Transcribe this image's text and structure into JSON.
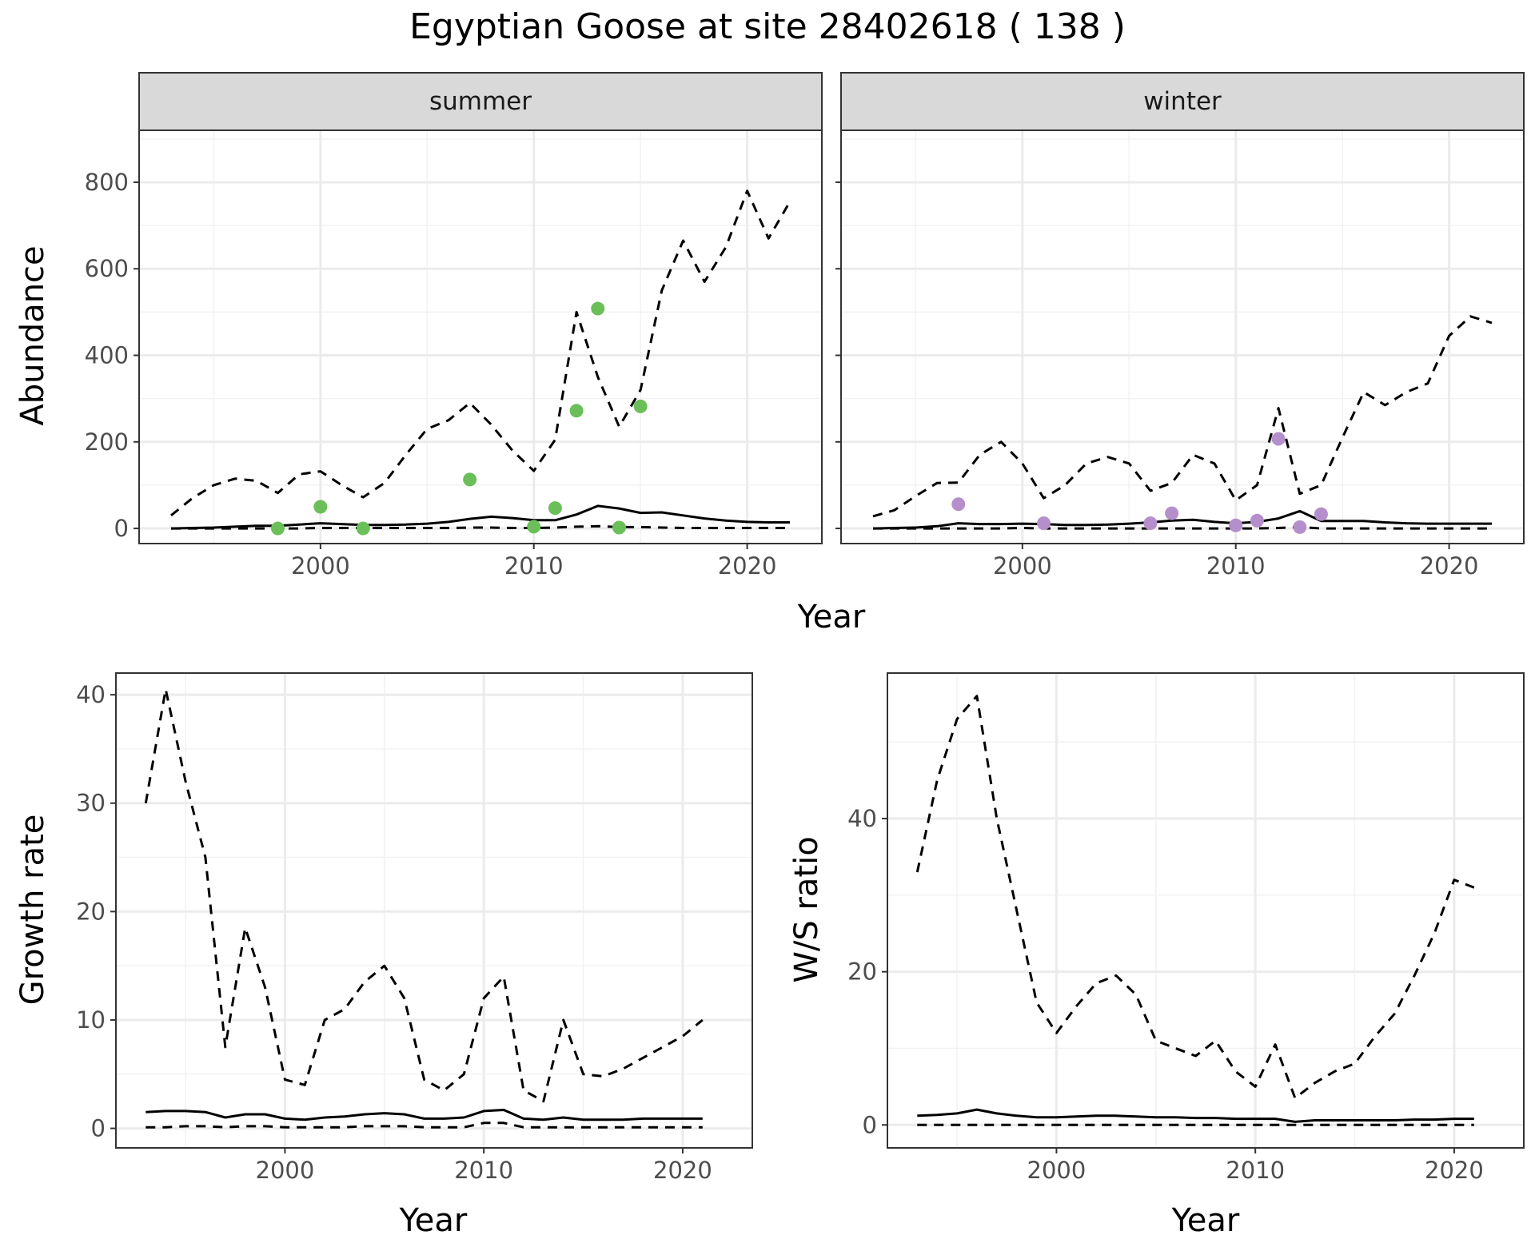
{
  "title": "Egyptian Goose at site 28402618 ( 138 )",
  "chart_data": [
    {
      "type": "line",
      "panel": "abundance",
      "facets": [
        "summer",
        "winter"
      ],
      "xlabel": "Year",
      "ylabel": "Abundance",
      "xlim": [
        1991.5,
        2023.5
      ],
      "ylim": [
        -35,
        920
      ],
      "xticks": [
        2000,
        2010,
        2020
      ],
      "yticks": [
        0,
        200,
        400,
        600,
        800
      ],
      "grid": true,
      "legend": "none",
      "x": [
        1993,
        1994,
        1995,
        1996,
        1997,
        1998,
        1999,
        2000,
        2001,
        2002,
        2003,
        2004,
        2005,
        2006,
        2007,
        2008,
        2009,
        2010,
        2011,
        2012,
        2013,
        2014,
        2015,
        2016,
        2017,
        2018,
        2019,
        2020,
        2021,
        2022
      ],
      "summer": {
        "point_color": "#6abf59",
        "points": [
          [
            1998,
            0
          ],
          [
            2000,
            50
          ],
          [
            2002,
            0
          ],
          [
            2007,
            113
          ],
          [
            2010,
            4
          ],
          [
            2011,
            47
          ],
          [
            2012,
            272
          ],
          [
            2013,
            508
          ],
          [
            2014,
            2
          ],
          [
            2015,
            282
          ]
        ],
        "median": [
          0,
          1,
          2,
          4,
          6,
          6,
          9,
          12,
          10,
          8,
          8,
          9,
          11,
          15,
          22,
          27,
          24,
          19,
          19,
          32,
          52,
          46,
          36,
          37,
          30,
          23,
          18,
          15,
          14,
          14
        ],
        "upper": [
          30,
          70,
          100,
          115,
          110,
          82,
          125,
          132,
          100,
          72,
          105,
          170,
          230,
          250,
          290,
          240,
          180,
          133,
          205,
          500,
          350,
          235,
          320,
          550,
          665,
          570,
          650,
          780,
          670,
          755
        ],
        "lower": [
          0,
          0,
          0,
          0,
          0,
          0,
          0,
          1,
          1,
          1,
          1,
          1,
          1,
          1,
          2,
          2,
          1,
          1,
          2,
          4,
          5,
          3,
          3,
          2,
          1,
          1,
          1,
          1,
          1,
          1
        ]
      },
      "winter": {
        "point_color": "#b58fcb",
        "points": [
          [
            1997,
            56
          ],
          [
            2001,
            12
          ],
          [
            2006,
            12
          ],
          [
            2007,
            35
          ],
          [
            2010,
            7
          ],
          [
            2011,
            18
          ],
          [
            2012,
            207
          ],
          [
            2013,
            3
          ],
          [
            2014,
            33
          ]
        ],
        "median": [
          0,
          1,
          2,
          5,
          12,
          10,
          10,
          11,
          10,
          8,
          8,
          9,
          11,
          14,
          18,
          20,
          15,
          12,
          15,
          23,
          40,
          17,
          17,
          17,
          14,
          12,
          11,
          11,
          11,
          11
        ],
        "upper": [
          28,
          42,
          75,
          105,
          106,
          170,
          200,
          150,
          70,
          100,
          150,
          165,
          150,
          87,
          105,
          170,
          150,
          65,
          100,
          278,
          80,
          100,
          210,
          315,
          285,
          315,
          335,
          445,
          490,
          475
        ],
        "lower": [
          0,
          0,
          0,
          0,
          0,
          0,
          0,
          1,
          0,
          0,
          0,
          0,
          0,
          0,
          0,
          0,
          0,
          0,
          0,
          1,
          3,
          0,
          0,
          0,
          0,
          0,
          0,
          0,
          0,
          0
        ]
      }
    },
    {
      "type": "line",
      "panel": "growth",
      "xlabel": "Year",
      "ylabel": "Growth rate",
      "xlim": [
        1991.5,
        2023.5
      ],
      "ylim": [
        -1.8,
        42
      ],
      "xticks": [
        2000,
        2010,
        2020
      ],
      "yticks": [
        0,
        10,
        20,
        30,
        40
      ],
      "grid": true,
      "legend": "none",
      "x": [
        1993,
        1994,
        1995,
        1996,
        1997,
        1998,
        1999,
        2000,
        2001,
        2002,
        2003,
        2004,
        2005,
        2006,
        2007,
        2008,
        2009,
        2010,
        2011,
        2012,
        2013,
        2014,
        2015,
        2016,
        2017,
        2018,
        2019,
        2020,
        2021
      ],
      "median": [
        1.5,
        1.6,
        1.6,
        1.5,
        1.0,
        1.3,
        1.3,
        0.9,
        0.8,
        1.0,
        1.1,
        1.3,
        1.4,
        1.3,
        0.9,
        0.9,
        1.0,
        1.6,
        1.7,
        0.9,
        0.8,
        1.0,
        0.8,
        0.8,
        0.8,
        0.9,
        0.9,
        0.9,
        0.9
      ],
      "upper": [
        30,
        40.5,
        32,
        25,
        7.5,
        18.5,
        13,
        4.5,
        4,
        10,
        11,
        13.5,
        15,
        12,
        4.5,
        3.5,
        5,
        12,
        14,
        3.5,
        2.5,
        10,
        5,
        4.8,
        5.5,
        6.5,
        7.5,
        8.5,
        10
      ],
      "lower": [
        0.1,
        0.1,
        0.2,
        0.2,
        0.1,
        0.2,
        0.2,
        0.1,
        0.1,
        0.1,
        0.1,
        0.2,
        0.2,
        0.2,
        0.1,
        0.1,
        0.1,
        0.5,
        0.5,
        0.1,
        0.1,
        0.1,
        0.1,
        0.1,
        0.1,
        0.1,
        0.1,
        0.1,
        0.1
      ]
    },
    {
      "type": "line",
      "panel": "ratio",
      "xlabel": "Year",
      "ylabel": "W/S ratio",
      "xlim": [
        1991.5,
        2023.5
      ],
      "ylim": [
        -3,
        59
      ],
      "xticks": [
        2000,
        2010,
        2020
      ],
      "yticks": [
        0,
        20,
        40
      ],
      "grid": true,
      "legend": "none",
      "x": [
        1993,
        1994,
        1995,
        1996,
        1997,
        1998,
        1999,
        2000,
        2001,
        2002,
        2003,
        2004,
        2005,
        2006,
        2007,
        2008,
        2009,
        2010,
        2011,
        2012,
        2013,
        2014,
        2015,
        2016,
        2017,
        2018,
        2019,
        2020,
        2021
      ],
      "median": [
        1.2,
        1.3,
        1.5,
        2.0,
        1.5,
        1.2,
        1.0,
        1.0,
        1.1,
        1.2,
        1.2,
        1.1,
        1.0,
        1.0,
        0.9,
        0.9,
        0.8,
        0.8,
        0.8,
        0.4,
        0.6,
        0.6,
        0.6,
        0.6,
        0.6,
        0.7,
        0.7,
        0.8,
        0.8
      ],
      "upper": [
        33,
        45,
        53,
        56,
        40,
        28,
        16,
        12,
        15.5,
        18.5,
        19.5,
        17,
        11,
        10,
        9,
        11,
        7,
        5,
        10.5,
        3.5,
        5.5,
        7,
        8,
        11.5,
        14.5,
        19.5,
        25,
        32,
        31
      ],
      "lower": [
        0,
        0,
        0,
        0,
        0,
        0,
        0,
        0,
        0,
        0,
        0,
        0,
        0,
        0,
        0,
        0,
        0,
        0,
        0,
        0,
        0,
        0,
        0,
        0,
        0,
        0,
        0,
        0,
        0
      ]
    }
  ]
}
